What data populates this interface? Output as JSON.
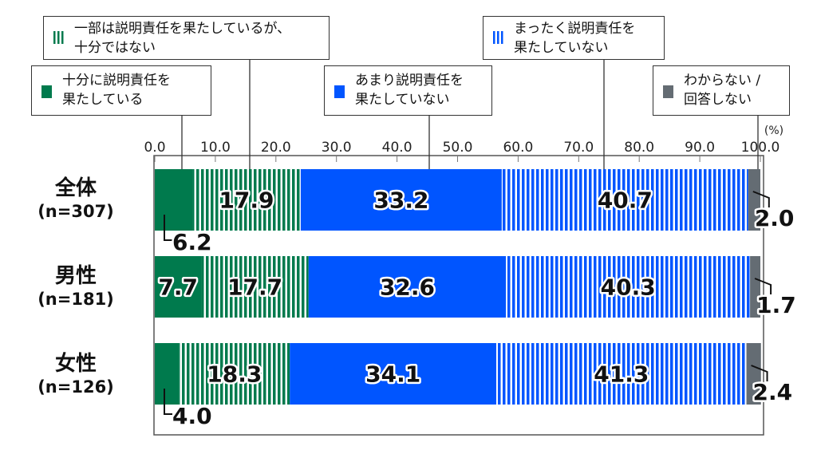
{
  "chart_data": {
    "type": "bar",
    "orientation": "horizontal-stacked-100",
    "unit_label": "(%)",
    "xlim": [
      0,
      100
    ],
    "ticks": [
      "0.0",
      "10.0",
      "20.0",
      "30.0",
      "40.0",
      "50.0",
      "60.0",
      "70.0",
      "80.0",
      "90.0",
      "100.0"
    ],
    "categories": [
      {
        "name": "全体",
        "n": "(n=307)"
      },
      {
        "name": "男性",
        "n": "(n=181)"
      },
      {
        "name": "女性",
        "n": "(n=126)"
      }
    ],
    "series": [
      {
        "name": "十分に説明責任を果たしている",
        "color": "#007a4d",
        "pattern": "solid",
        "values": [
          6.2,
          7.7,
          4.0
        ]
      },
      {
        "name": "一部は説明責任を果たしているが、十分ではない",
        "color": "#007a4d",
        "pattern": "stripes",
        "values": [
          17.9,
          17.7,
          18.3
        ]
      },
      {
        "name": "あまり説明責任を果たしていない",
        "color": "#0055ff",
        "pattern": "solid",
        "values": [
          33.2,
          32.6,
          34.1
        ]
      },
      {
        "name": "まったく説明責任を果たしていない",
        "color": "#0055ff",
        "pattern": "stripes",
        "values": [
          40.7,
          40.3,
          41.3
        ]
      },
      {
        "name": "わからない / 回答しない",
        "color": "#646c73",
        "pattern": "solid",
        "values": [
          2.0,
          1.7,
          2.4
        ]
      }
    ],
    "legend": [
      {
        "line1": "十分に説明責任を",
        "line2": "果たしている"
      },
      {
        "line1": "一部は説明責任を果たしているが、",
        "line2": "十分ではない"
      },
      {
        "line1": "あまり説明責任を",
        "line2": "果たしていない"
      },
      {
        "line1": "まったく説明責任を",
        "line2": "果たしていない"
      },
      {
        "line1": "わからない /",
        "line2": "回答しない"
      }
    ]
  }
}
